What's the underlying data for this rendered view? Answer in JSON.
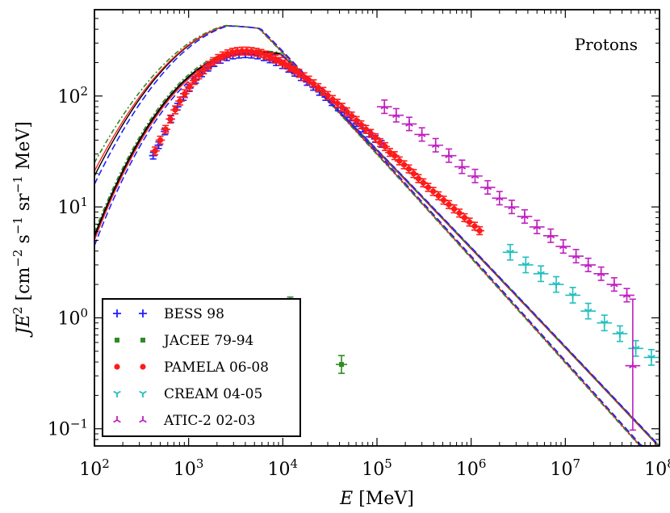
{
  "chart_data": {
    "type": "scatter",
    "annotation": "Protons",
    "x_scale": "log",
    "y_scale": "log",
    "xlim": [
      100,
      100000000
    ],
    "ylim": [
      0.07,
      600
    ],
    "x_ticks": [
      {
        "value": 100,
        "base": "10",
        "exp": "2"
      },
      {
        "value": 1000,
        "base": "10",
        "exp": "3"
      },
      {
        "value": 10000,
        "base": "10",
        "exp": "4"
      },
      {
        "value": 100000,
        "base": "10",
        "exp": "5"
      },
      {
        "value": 1000000,
        "base": "10",
        "exp": "6"
      },
      {
        "value": 10000000,
        "base": "10",
        "exp": "7"
      },
      {
        "value": 100000000,
        "base": "10",
        "exp": "8"
      }
    ],
    "y_ticks": [
      {
        "value": 0.1,
        "base": "10",
        "exp": "−1"
      },
      {
        "value": 1,
        "base": "10",
        "exp": "0"
      },
      {
        "value": 10,
        "base": "10",
        "exp": "1"
      },
      {
        "value": 100,
        "base": "10",
        "exp": "2"
      }
    ],
    "xlabel": {
      "italic": "E",
      "rest": " [MeV]"
    },
    "ylabel": {
      "italic": "JE",
      "sup1": "2",
      "p1": " [cm",
      "sup2": "−2",
      "p2": " s",
      "sup3": "−1",
      "p3": " sr",
      "sup4": "−1",
      "p4": " MeV]"
    },
    "grid": false,
    "legend_position": "bottom-left",
    "series": [
      {
        "name": "BESS 98",
        "marker": "plus",
        "color": "#1f1fff",
        "points": [
          [
            420,
            29
          ],
          [
            480,
            36
          ],
          [
            560,
            48
          ],
          [
            650,
            62
          ],
          [
            760,
            80
          ],
          [
            880,
            98
          ],
          [
            1020,
            118
          ],
          [
            1190,
            140
          ],
          [
            1380,
            160
          ],
          [
            1610,
            180
          ],
          [
            1870,
            198
          ],
          [
            2180,
            212
          ],
          [
            2540,
            224
          ],
          [
            2950,
            232
          ],
          [
            3430,
            236
          ],
          [
            4000,
            238
          ],
          [
            4650,
            236
          ],
          [
            5400,
            232
          ],
          [
            6300,
            224
          ],
          [
            7300,
            214
          ],
          [
            8500,
            202
          ],
          [
            9900,
            190
          ],
          [
            11500,
            176
          ],
          [
            13400,
            162
          ],
          [
            15600,
            148
          ],
          [
            18100,
            134
          ],
          [
            21100,
            121
          ],
          [
            24500,
            109
          ],
          [
            28500,
            98
          ],
          [
            33200,
            88
          ],
          [
            38600,
            79
          ],
          [
            45000,
            71
          ],
          [
            52300,
            64
          ],
          [
            60900,
            57
          ],
          [
            70900,
            51
          ],
          [
            82500,
            46
          ],
          [
            96000,
            41
          ],
          [
            111700,
            37
          ]
        ],
        "yerr": 0.03,
        "xerr": 0.0
      },
      {
        "name": "JACEE 79-94",
        "marker": "square",
        "color": "#2e8b22",
        "points": [
          [
            12000,
            1.28
          ],
          [
            42000,
            0.38
          ]
        ],
        "yerr": 0.08,
        "xerr": 0.06
      },
      {
        "name": "PAMELA 06-08",
        "marker": "circle",
        "color": "#ff1a1a",
        "points": [
          [
            440,
            32
          ],
          [
            500,
            40
          ],
          [
            570,
            50
          ],
          [
            640,
            62
          ],
          [
            720,
            75
          ],
          [
            810,
            90
          ],
          [
            910,
            105
          ],
          [
            1020,
            121
          ],
          [
            1150,
            138
          ],
          [
            1290,
            155
          ],
          [
            1450,
            172
          ],
          [
            1630,
            189
          ],
          [
            1830,
            204
          ],
          [
            2060,
            218
          ],
          [
            2310,
            230
          ],
          [
            2600,
            240
          ],
          [
            2920,
            248
          ],
          [
            3280,
            252
          ],
          [
            3690,
            254
          ],
          [
            4140,
            254
          ],
          [
            4650,
            252
          ],
          [
            5230,
            248
          ],
          [
            5880,
            242
          ],
          [
            6600,
            234
          ],
          [
            7420,
            225
          ],
          [
            8340,
            215
          ],
          [
            9370,
            205
          ],
          [
            10500,
            194
          ],
          [
            11800,
            182
          ],
          [
            13300,
            171
          ],
          [
            14900,
            160
          ],
          [
            16800,
            149
          ],
          [
            18900,
            139
          ],
          [
            21200,
            129
          ],
          [
            23800,
            119
          ],
          [
            26800,
            110
          ],
          [
            30100,
            101
          ],
          [
            33800,
            93
          ],
          [
            38000,
            86
          ],
          [
            42700,
            79
          ],
          [
            48000,
            72
          ],
          [
            53900,
            66
          ],
          [
            60600,
            60
          ],
          [
            68000,
            55
          ],
          [
            76400,
            50
          ],
          [
            85900,
            46
          ],
          [
            96500,
            42
          ],
          [
            108000,
            38
          ],
          [
            122000,
            35
          ],
          [
            137000,
            31
          ],
          [
            154000,
            29
          ],
          [
            173000,
            26
          ],
          [
            194000,
            24
          ],
          [
            218000,
            22
          ],
          [
            245000,
            20
          ],
          [
            276000,
            18
          ],
          [
            310000,
            16.5
          ],
          [
            350000,
            15
          ],
          [
            395000,
            13.8
          ],
          [
            450000,
            12.6
          ],
          [
            510000,
            11.5
          ],
          [
            580000,
            10.5
          ],
          [
            660000,
            9.6
          ],
          [
            750000,
            8.8
          ],
          [
            850000,
            8.0
          ],
          [
            960000,
            7.3
          ],
          [
            1090000,
            6.7
          ],
          [
            1230000,
            6.1
          ]
        ],
        "yerr": 0.035,
        "xerr": 0.05
      },
      {
        "name": "CREAM 04-05",
        "marker": "tri_down",
        "color": "#1fbfbf",
        "points": [
          [
            2600000,
            3.9
          ],
          [
            3800000,
            3.0
          ],
          [
            5500000,
            2.5
          ],
          [
            8000000,
            2.0
          ],
          [
            12000000,
            1.6
          ],
          [
            17500000,
            1.15
          ],
          [
            26000000,
            0.9
          ],
          [
            38000000,
            0.72
          ],
          [
            56000000,
            0.53
          ],
          [
            82000000,
            0.44
          ]
        ],
        "yerr": 0.07,
        "xerr": 0.08
      },
      {
        "name": "ATIC-2 02-03",
        "marker": "tri_up",
        "color": "#bf1fbf",
        "points": [
          [
            120000,
            80
          ],
          [
            160000,
            67
          ],
          [
            220000,
            56
          ],
          [
            300000,
            45
          ],
          [
            420000,
            36
          ],
          [
            580000,
            29
          ],
          [
            800000,
            23
          ],
          [
            1100000,
            19
          ],
          [
            1500000,
            15
          ],
          [
            2000000,
            12
          ],
          [
            2700000,
            10
          ],
          [
            3700000,
            8.2
          ],
          [
            5000000,
            6.6
          ],
          [
            7000000,
            5.5
          ],
          [
            9500000,
            4.4
          ],
          [
            13000000,
            3.6
          ],
          [
            17500000,
            3.0
          ],
          [
            24000000,
            2.5
          ],
          [
            33000000,
            2.0
          ],
          [
            45000000,
            1.6
          ],
          [
            52000000,
            0.37
          ]
        ],
        "yerr": 0.06,
        "xerr": 0.08
      }
    ],
    "curves": [
      {
        "kind": "modulated",
        "color": "#000000",
        "dash": "solid",
        "width": 2.2,
        "peak": 250,
        "peak_e": 4200,
        "lowfit": 0
      },
      {
        "kind": "modulated",
        "color": "#ff2020",
        "dash": "solid",
        "width": 1.4,
        "peak": 244,
        "peak_e": 4300,
        "lowfit": 0
      },
      {
        "kind": "modulated",
        "color": "#2e8b22",
        "dash": "6,3,2,3",
        "width": 1.6,
        "peak": 258,
        "peak_e": 4100,
        "lowfit": 0
      },
      {
        "kind": "modulated",
        "color": "#1f1fff",
        "dash": "8,4",
        "width": 1.6,
        "peak": 240,
        "peak_e": 4500,
        "lowfit": 0
      },
      {
        "kind": "lis",
        "color": "#000000",
        "dash": "solid",
        "width": 1.4,
        "peak": 430,
        "peak_e": 2500,
        "lowfit": 19
      },
      {
        "kind": "lis",
        "color": "#ff2020",
        "dash": "solid",
        "width": 1.4,
        "peak": 430,
        "peak_e": 2500,
        "lowfit": 21
      },
      {
        "kind": "lis",
        "color": "#2e8b22",
        "dash": "6,3,2,3",
        "width": 1.6,
        "peak": 432,
        "peak_e": 2450,
        "lowfit": 25
      },
      {
        "kind": "lis",
        "color": "#1f1fff",
        "dash": "8,4",
        "width": 1.6,
        "peak": 428,
        "peak_e": 2600,
        "lowfit": 16
      }
    ]
  }
}
